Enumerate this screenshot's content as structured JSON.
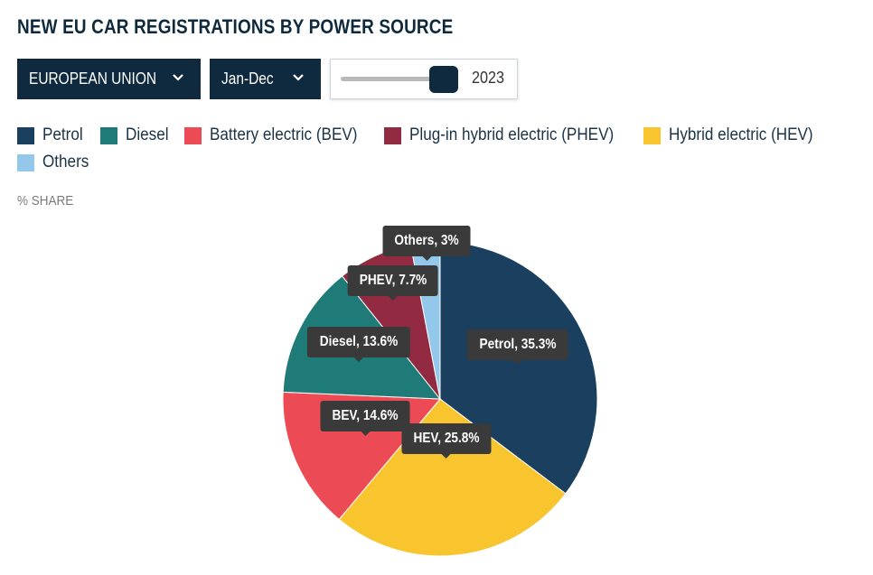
{
  "title": "NEW EU CAR REGISTRATIONS BY POWER SOURCE",
  "controls": {
    "region": "EUROPEAN UNION",
    "period": "Jan-Dec",
    "year": "2023",
    "year_slider_fraction": 0.95
  },
  "unit_label": "% SHARE",
  "legend": [
    {
      "label": "Petrol",
      "color": "#1b3f5e"
    },
    {
      "label": "Diesel",
      "color": "#1f7b78"
    },
    {
      "label": "Battery electric (BEV)",
      "color": "#ec4a55"
    },
    {
      "label": "Plug-in hybrid electric (PHEV)",
      "color": "#922a42"
    },
    {
      "label": "Hybrid electric (HEV)",
      "color": "#f8c52e"
    },
    {
      "label": "Others",
      "color": "#94c8ea"
    }
  ],
  "chart_data": {
    "type": "pie",
    "title": "NEW EU CAR REGISTRATIONS BY POWER SOURCE",
    "unit": "% SHARE",
    "slices": [
      {
        "name": "Petrol",
        "short": "Petrol",
        "value": 35.3,
        "label": "Petrol, 35.3%",
        "color": "#1b3f5e"
      },
      {
        "name": "Hybrid electric (HEV)",
        "short": "HEV",
        "value": 25.8,
        "label": "HEV, 25.8%",
        "color": "#f8c52e"
      },
      {
        "name": "Battery electric (BEV)",
        "short": "BEV",
        "value": 14.6,
        "label": "BEV, 14.6%",
        "color": "#ec4a55"
      },
      {
        "name": "Diesel",
        "short": "Diesel",
        "value": 13.6,
        "label": "Diesel, 13.6%",
        "color": "#1f7b78"
      },
      {
        "name": "Plug-in hybrid electric (PHEV)",
        "short": "PHEV",
        "value": 7.7,
        "label": "PHEV, 7.7%",
        "color": "#922a42"
      },
      {
        "name": "Others",
        "short": "Others",
        "value": 3,
        "label": "Others, 3%",
        "color": "#94c8ea"
      }
    ]
  }
}
